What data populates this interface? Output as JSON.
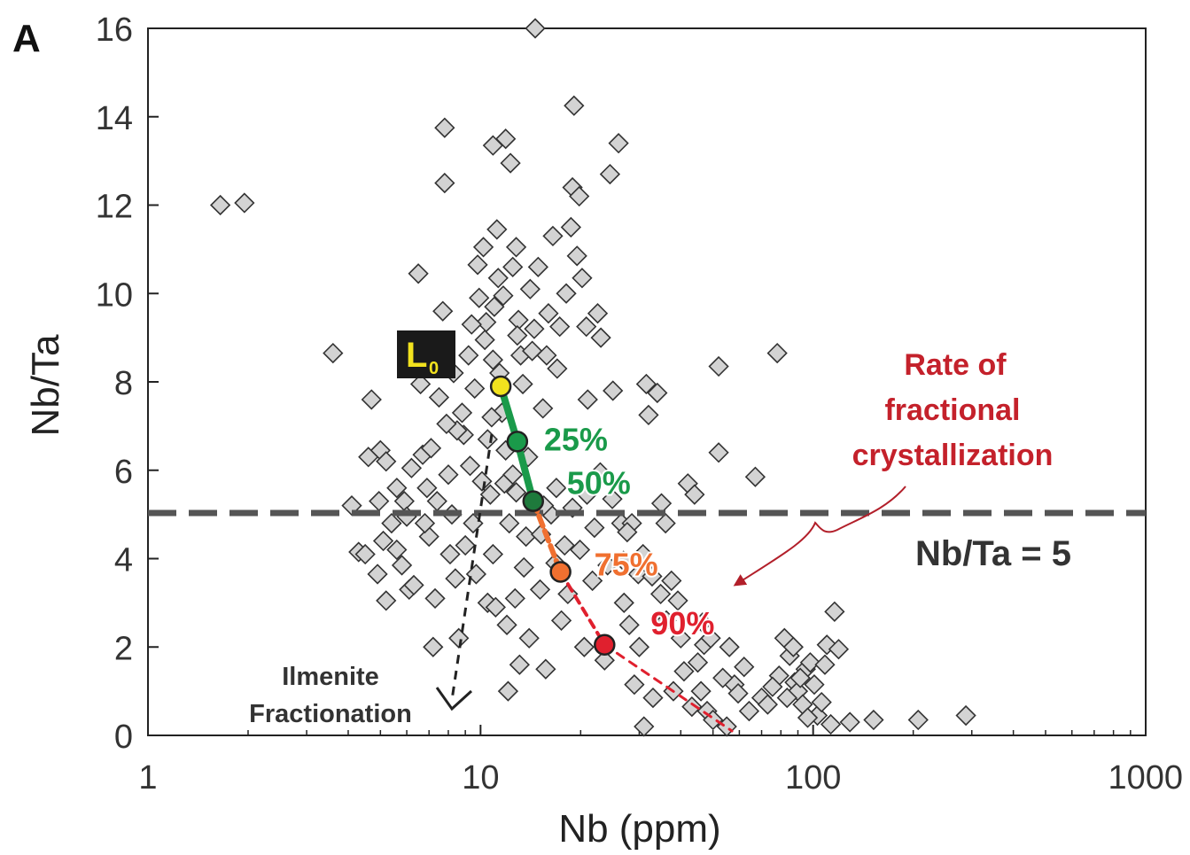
{
  "panel_label": "A",
  "chart_data": {
    "type": "scatter",
    "title": "",
    "xlabel": "Nb (ppm)",
    "ylabel": "Nb/Ta",
    "x_scale": "log",
    "xlim": [
      1,
      1000
    ],
    "ylim": [
      0,
      16
    ],
    "x_ticks": [
      1,
      10,
      100,
      1000
    ],
    "x_tick_labels": [
      "1",
      "10",
      "100",
      "1000"
    ],
    "y_ticks": [
      0,
      2,
      4,
      6,
      8,
      10,
      12,
      14,
      16
    ],
    "y_tick_labels": [
      "0",
      "2",
      "4",
      "6",
      "8",
      "10",
      "12",
      "14",
      "16"
    ],
    "grid": false,
    "colors": {
      "marker_fill": "#d3d3d3",
      "marker_edge": "#333333",
      "green": "#1a9a4a",
      "orange": "#f07030",
      "red": "#e0202e",
      "dark_red": "#b21f2a",
      "yellow": "#f2e21e",
      "reference_line": "#555555"
    },
    "reference_line": {
      "y": 5,
      "label": "Nb/Ta = 5"
    },
    "start_point": {
      "label": "L",
      "label_subscript": "0",
      "x": 11.5,
      "y": 7.9
    },
    "fractionation_path": [
      {
        "x": 11.5,
        "y": 7.9,
        "label": ""
      },
      {
        "x": 12.9,
        "y": 6.65,
        "label": "25%"
      },
      {
        "x": 14.4,
        "y": 5.3,
        "label": "50%"
      },
      {
        "x": 17.4,
        "y": 3.7,
        "label": "75%"
      },
      {
        "x": 23.6,
        "y": 2.05,
        "label": "90%"
      },
      {
        "x": 57,
        "y": 0.1,
        "label": ""
      }
    ],
    "annotations": {
      "ilmenite_line1": "Ilmenite",
      "ilmenite_line2": "Fractionation",
      "rate_line1": "Rate of",
      "rate_line2": "fractional",
      "rate_line3": "crystallization"
    },
    "series": [
      {
        "marker": "diamond",
        "points": [
          [
            1.65,
            12
          ],
          [
            1.95,
            12.05
          ],
          [
            3.6,
            8.65
          ],
          [
            4.1,
            5.2
          ],
          [
            4.3,
            4.15
          ],
          [
            4.5,
            4.1
          ],
          [
            4.6,
            6.3
          ],
          [
            4.7,
            7.6
          ],
          [
            4.9,
            3.65
          ],
          [
            5,
            6.45
          ],
          [
            5.2,
            6.2
          ],
          [
            5.2,
            3.05
          ],
          [
            5.4,
            4.8
          ],
          [
            5.6,
            5.6
          ],
          [
            5.6,
            4.2
          ],
          [
            5.9,
            5.3
          ],
          [
            6,
            4.95
          ],
          [
            6.1,
            3.3
          ],
          [
            6.3,
            3.4
          ],
          [
            6.5,
            10.45
          ],
          [
            6.6,
            7.95
          ],
          [
            6.7,
            6.35
          ],
          [
            6.9,
            5.6
          ],
          [
            7,
            4.5
          ],
          [
            7.1,
            6.5
          ],
          [
            7.2,
            2.0
          ],
          [
            7.3,
            3.1
          ],
          [
            7.5,
            7.65
          ],
          [
            7.7,
            9.6
          ],
          [
            7.8,
            13.75
          ],
          [
            7.8,
            12.5
          ],
          [
            8,
            5.9
          ],
          [
            8.2,
            5.0
          ],
          [
            8.4,
            3.55
          ],
          [
            8.6,
            2.2
          ],
          [
            8.9,
            6.8
          ],
          [
            9.2,
            8.6
          ],
          [
            9.5,
            4.8
          ],
          [
            9.7,
            3.65
          ],
          [
            9.9,
            9.9
          ],
          [
            10.2,
            11.05
          ],
          [
            10.3,
            8.95
          ],
          [
            10.5,
            6.7
          ],
          [
            10.7,
            5.45
          ],
          [
            10.9,
            4.1
          ],
          [
            10.9,
            13.35
          ],
          [
            11,
            9.7
          ],
          [
            11.2,
            11.45
          ],
          [
            11.3,
            10.35
          ],
          [
            11.4,
            8.2
          ],
          [
            11.6,
            7.3
          ],
          [
            11.8,
            5.7
          ],
          [
            11.9,
            13.5
          ],
          [
            12,
            2.5
          ],
          [
            12.1,
            1.0
          ],
          [
            12.2,
            4.8
          ],
          [
            12.3,
            12.95
          ],
          [
            12.5,
            10.6
          ],
          [
            12.8,
            11.05
          ],
          [
            13,
            9.4
          ],
          [
            13.2,
            8.6
          ],
          [
            13.4,
            7.95
          ],
          [
            13.7,
            4.5
          ],
          [
            14,
            2.2
          ],
          [
            14.1,
            10.1
          ],
          [
            14.5,
            9.2
          ],
          [
            14.9,
            10.6
          ],
          [
            15.1,
            3.3
          ],
          [
            15.4,
            7.4
          ],
          [
            15.7,
            1.5
          ],
          [
            16,
            9.55
          ],
          [
            16.3,
            5.0
          ],
          [
            16.5,
            11.3
          ],
          [
            17,
            8.3
          ],
          [
            17.5,
            2.6
          ],
          [
            17.9,
            4.3
          ],
          [
            18.1,
            10.0
          ],
          [
            18.7,
            11.5
          ],
          [
            18.9,
            12.4
          ],
          [
            19.1,
            14.25
          ],
          [
            19.5,
            10.85
          ],
          [
            19.8,
            12.2
          ],
          [
            20.2,
            10.35
          ],
          [
            20.5,
            2.0
          ],
          [
            21,
            7.6
          ],
          [
            22,
            4.7
          ],
          [
            22.5,
            9.55
          ],
          [
            23,
            9.0
          ],
          [
            23.6,
            1.7
          ],
          [
            24.5,
            12.7
          ],
          [
            25,
            7.8
          ],
          [
            26,
            13.4
          ],
          [
            26.5,
            4.8
          ],
          [
            27,
            3.0
          ],
          [
            28,
            2.5
          ],
          [
            29,
            1.15
          ],
          [
            30,
            2.0
          ],
          [
            31,
            0.2
          ],
          [
            31.5,
            7.95
          ],
          [
            32,
            7.25
          ],
          [
            33,
            0.85
          ],
          [
            34,
            7.75
          ],
          [
            35,
            5.25
          ],
          [
            36,
            4.8
          ],
          [
            37.5,
            3.5
          ],
          [
            38,
            1.0
          ],
          [
            40,
            2.2
          ],
          [
            42,
            5.7
          ],
          [
            44,
            5.45
          ],
          [
            45,
            1.65
          ],
          [
            46,
            1.0
          ],
          [
            47,
            2.05
          ],
          [
            48,
            0.55
          ],
          [
            50,
            0.35
          ],
          [
            52,
            8.35
          ],
          [
            52,
            6.4
          ],
          [
            55,
            0.2
          ],
          [
            56,
            2.0
          ],
          [
            58,
            1.15
          ],
          [
            62,
            1.55
          ],
          [
            67,
            5.85
          ],
          [
            70,
            0.85
          ],
          [
            73,
            0.7
          ],
          [
            78,
            8.65
          ],
          [
            79,
            1.35
          ],
          [
            82,
            2.2
          ],
          [
            85,
            1.8
          ],
          [
            88,
            1.2
          ],
          [
            90,
            1.0
          ],
          [
            93,
            0.7
          ],
          [
            95,
            1.5
          ],
          [
            98,
            1.65
          ],
          [
            103,
            0.45
          ],
          [
            106,
            0.75
          ],
          [
            110,
            2.05
          ],
          [
            113,
            0.25
          ],
          [
            116,
            2.8
          ],
          [
            129,
            0.3
          ],
          [
            152,
            0.35
          ],
          [
            207,
            0.35
          ],
          [
            288,
            0.45
          ],
          [
            14.6,
            16
          ],
          [
            9.6,
            7.85
          ],
          [
            10.8,
            7.2
          ],
          [
            9.3,
            6.1
          ],
          [
            10.1,
            5.75
          ],
          [
            8.5,
            6.9
          ],
          [
            9.0,
            4.3
          ],
          [
            10.5,
            3.0
          ],
          [
            12.7,
            3.1
          ],
          [
            13.5,
            3.8
          ],
          [
            15.2,
            4.55
          ],
          [
            16.8,
            3.9
          ],
          [
            11.1,
            2.9
          ],
          [
            8.1,
            4.1
          ],
          [
            7.4,
            5.3
          ],
          [
            12.5,
            5.9
          ],
          [
            13.1,
            1.6
          ],
          [
            18.3,
            3.2
          ],
          [
            19.9,
            4.2
          ],
          [
            21.7,
            3.5
          ],
          [
            24.1,
            3.85
          ],
          [
            26.9,
            3.95
          ],
          [
            28.5,
            4.8
          ],
          [
            30.8,
            4.1
          ],
          [
            34.8,
            3.2
          ],
          [
            39.2,
            3.05
          ],
          [
            9.8,
            10.65
          ],
          [
            10.4,
            9.35
          ],
          [
            11.7,
            9.95
          ],
          [
            12.9,
            9.05
          ],
          [
            14.3,
            8.7
          ],
          [
            15.8,
            8.6
          ],
          [
            17.3,
            9.25
          ],
          [
            20.8,
            9.25
          ],
          [
            8.8,
            7.3
          ],
          [
            7.9,
            7.05
          ],
          [
            6.8,
            4.8
          ],
          [
            6.2,
            6.05
          ],
          [
            5.8,
            3.85
          ],
          [
            5.1,
            4.4
          ],
          [
            4.95,
            5.3
          ],
          [
            8.3,
            8.2
          ],
          [
            9.4,
            9.3
          ],
          [
            10.9,
            8.5
          ],
          [
            11.9,
            6.45
          ],
          [
            12.8,
            5.5
          ],
          [
            13.9,
            6.3
          ],
          [
            15.5,
            5.2
          ],
          [
            16.9,
            5.6
          ],
          [
            18.9,
            5.15
          ],
          [
            20.9,
            5.45
          ],
          [
            22.9,
            5.95
          ],
          [
            24.9,
            5.35
          ],
          [
            27.6,
            4.6
          ],
          [
            29.8,
            3.65
          ],
          [
            32.8,
            3.6
          ],
          [
            36.2,
            2.6
          ],
          [
            40.9,
            1.45
          ],
          [
            43.2,
            0.65
          ],
          [
            46.5,
            2.55
          ],
          [
            49.2,
            2.2
          ],
          [
            53.5,
            1.3
          ],
          [
            59.5,
            0.95
          ],
          [
            64.2,
            0.55
          ],
          [
            75.5,
            1.1
          ],
          [
            83.5,
            0.85
          ],
          [
            87.2,
            2.0
          ],
          [
            91.5,
            1.3
          ],
          [
            96.3,
            0.4
          ],
          [
            100.8,
            1.15
          ],
          [
            108.5,
            1.6
          ],
          [
            119.3,
            1.95
          ]
        ]
      }
    ]
  }
}
